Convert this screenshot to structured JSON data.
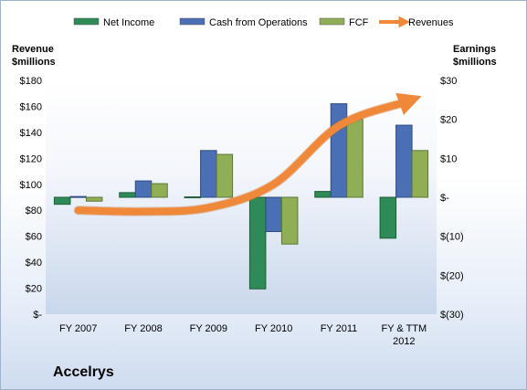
{
  "company": "Accelrys",
  "legend": [
    {
      "name": "Net Income",
      "color": "#2e8b57"
    },
    {
      "name": "Cash from Operations",
      "color": "#4a6fb5"
    },
    {
      "name": "FCF",
      "color": "#8fae56"
    },
    {
      "name": "Revenues",
      "color": "#f0883a"
    }
  ],
  "chart_data": {
    "type": "bar",
    "categories": [
      "FY 2007",
      "FY 2008",
      "FY 2009",
      "FY 2010",
      "FY 2011",
      "FY & TTM 2012"
    ],
    "left_axis": {
      "title": [
        "Revenue",
        "$millions"
      ],
      "ylim": [
        0,
        180
      ],
      "ticks": [
        0,
        20,
        40,
        60,
        80,
        100,
        120,
        140,
        160,
        180
      ],
      "tick_labels": [
        "$-",
        "$20",
        "$40",
        "$60",
        "$80",
        "$100",
        "$120",
        "$140",
        "$160",
        "$180"
      ]
    },
    "right_axis": {
      "title": [
        "Earnings",
        "$millions"
      ],
      "ylim": [
        -30,
        30
      ],
      "ticks": [
        -30,
        -20,
        -10,
        0,
        10,
        20,
        30
      ],
      "tick_labels": [
        "$(30)",
        "$(20)",
        "$(10)",
        "$-",
        "$10",
        "$20",
        "$30"
      ]
    },
    "series": [
      {
        "name": "Net Income",
        "axis": "right",
        "values": [
          -1.8,
          1.2,
          0.1,
          -23.5,
          1.5,
          -10.5
        ]
      },
      {
        "name": "Cash from Operations",
        "axis": "right",
        "values": [
          0.2,
          4.2,
          12.0,
          -8.8,
          24.0,
          18.5
        ]
      },
      {
        "name": "FCF",
        "axis": "right",
        "values": [
          -1.0,
          3.5,
          11.0,
          -12.0,
          20.0,
          12.0
        ]
      },
      {
        "name": "Revenues",
        "axis": "left",
        "type": "line",
        "values": [
          80,
          79,
          82,
          100,
          145,
          163
        ]
      }
    ],
    "grid": false,
    "legend_position": "top"
  }
}
